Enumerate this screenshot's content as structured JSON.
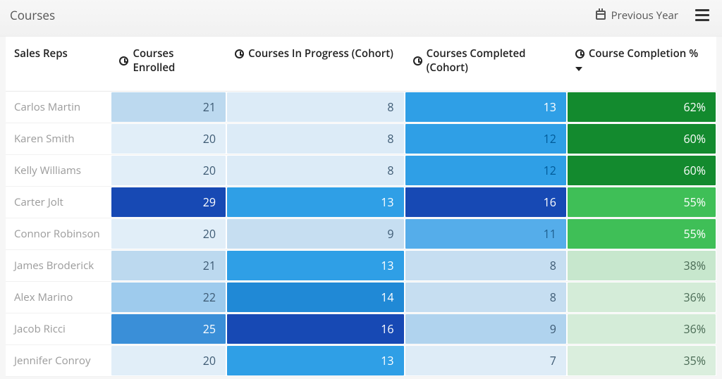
{
  "header": {
    "title": "Courses",
    "previous_year_label": "Previous Year"
  },
  "palette": {
    "text_light_on_dark": "#ffffff",
    "text_dark_on_light": "#3d5a73",
    "text_on_green_dark": "#ffffff",
    "text_on_green_light": "#4a6b55"
  },
  "table": {
    "columns": [
      {
        "key": "name",
        "label": "Sales Reps",
        "icon": false,
        "sortable": false,
        "sorted": false
      },
      {
        "key": "enrolled",
        "label": "Courses Enrolled",
        "icon": true,
        "sortable": true,
        "sorted": false
      },
      {
        "key": "progress",
        "label": "Courses In Progress (Cohort)",
        "icon": true,
        "sortable": true,
        "sorted": false
      },
      {
        "key": "completed",
        "label": "Courses Completed (Cohort)",
        "icon": true,
        "sortable": true,
        "sorted": false
      },
      {
        "key": "pct",
        "label": "Course Completion %",
        "icon": true,
        "sortable": true,
        "sorted": true
      }
    ],
    "rows": [
      {
        "name": "Carlos Martin",
        "enrolled": {
          "v": 21,
          "bg": "#bcd9ef",
          "fg": "#3d5a73"
        },
        "progress": {
          "v": 8,
          "bg": "#dcebf7",
          "fg": "#3d5a73"
        },
        "completed": {
          "v": 13,
          "bg": "#2f9fe6",
          "fg": "#ffffff"
        },
        "pct": {
          "v": "62%",
          "bg": "#138a2e",
          "fg": "#ffffff"
        }
      },
      {
        "name": "Karen Smith",
        "enrolled": {
          "v": 20,
          "bg": "#e1eef8",
          "fg": "#3d5a73"
        },
        "progress": {
          "v": 8,
          "bg": "#dcebf7",
          "fg": "#3d5a73"
        },
        "completed": {
          "v": 12,
          "bg": "#2f9fe6",
          "fg": "#005b99"
        },
        "pct": {
          "v": "60%",
          "bg": "#138a2e",
          "fg": "#ffffff"
        }
      },
      {
        "name": "Kelly Williams",
        "enrolled": {
          "v": 20,
          "bg": "#e1eef8",
          "fg": "#3d5a73"
        },
        "progress": {
          "v": 8,
          "bg": "#dcebf7",
          "fg": "#3d5a73"
        },
        "completed": {
          "v": 12,
          "bg": "#2f9fe6",
          "fg": "#005b99"
        },
        "pct": {
          "v": "60%",
          "bg": "#138a2e",
          "fg": "#ffffff"
        }
      },
      {
        "name": "Carter Jolt",
        "enrolled": {
          "v": 29,
          "bg": "#1749b4",
          "fg": "#ffffff"
        },
        "progress": {
          "v": 13,
          "bg": "#2f9fe6",
          "fg": "#ffffff"
        },
        "completed": {
          "v": 16,
          "bg": "#1749b4",
          "fg": "#ffffff"
        },
        "pct": {
          "v": "55%",
          "bg": "#3fbf57",
          "fg": "#ffffff"
        }
      },
      {
        "name": "Connor Robinson",
        "enrolled": {
          "v": 20,
          "bg": "#e1eef8",
          "fg": "#3d5a73"
        },
        "progress": {
          "v": 9,
          "bg": "#c6def1",
          "fg": "#3d5a73"
        },
        "completed": {
          "v": 11,
          "bg": "#55adea",
          "fg": "#1e5f8f"
        },
        "pct": {
          "v": "55%",
          "bg": "#3fbf57",
          "fg": "#ffffff"
        }
      },
      {
        "name": "James Broderick",
        "enrolled": {
          "v": 21,
          "bg": "#bcd9ef",
          "fg": "#3d5a73"
        },
        "progress": {
          "v": 13,
          "bg": "#2f9fe6",
          "fg": "#ffffff"
        },
        "completed": {
          "v": 8,
          "bg": "#c6def1",
          "fg": "#3d5a73"
        },
        "pct": {
          "v": "38%",
          "bg": "#c7e7cd",
          "fg": "#4a6b55"
        }
      },
      {
        "name": "Alex Marino",
        "enrolled": {
          "v": 22,
          "bg": "#9ecbed",
          "fg": "#3d5a73"
        },
        "progress": {
          "v": 14,
          "bg": "#2089d6",
          "fg": "#ffffff"
        },
        "completed": {
          "v": 8,
          "bg": "#c6def1",
          "fg": "#3d5a73"
        },
        "pct": {
          "v": "36%",
          "bg": "#d4ecd8",
          "fg": "#4a6b55"
        }
      },
      {
        "name": "Jacob Ricci",
        "enrolled": {
          "v": 25,
          "bg": "#3a8fd8",
          "fg": "#ffffff"
        },
        "progress": {
          "v": 16,
          "bg": "#1749b4",
          "fg": "#ffffff"
        },
        "completed": {
          "v": 9,
          "bg": "#b0d3ee",
          "fg": "#3d5a73"
        },
        "pct": {
          "v": "36%",
          "bg": "#d4ecd8",
          "fg": "#4a6b55"
        }
      },
      {
        "name": "Jennifer Conroy",
        "enrolled": {
          "v": 20,
          "bg": "#e1eef8",
          "fg": "#3d5a73"
        },
        "progress": {
          "v": 13,
          "bg": "#2f9fe6",
          "fg": "#ffffff"
        },
        "completed": {
          "v": 7,
          "bg": "#deecf7",
          "fg": "#3d5a73"
        },
        "pct": {
          "v": "35%",
          "bg": "#daeedd",
          "fg": "#4a6b55"
        }
      }
    ]
  }
}
